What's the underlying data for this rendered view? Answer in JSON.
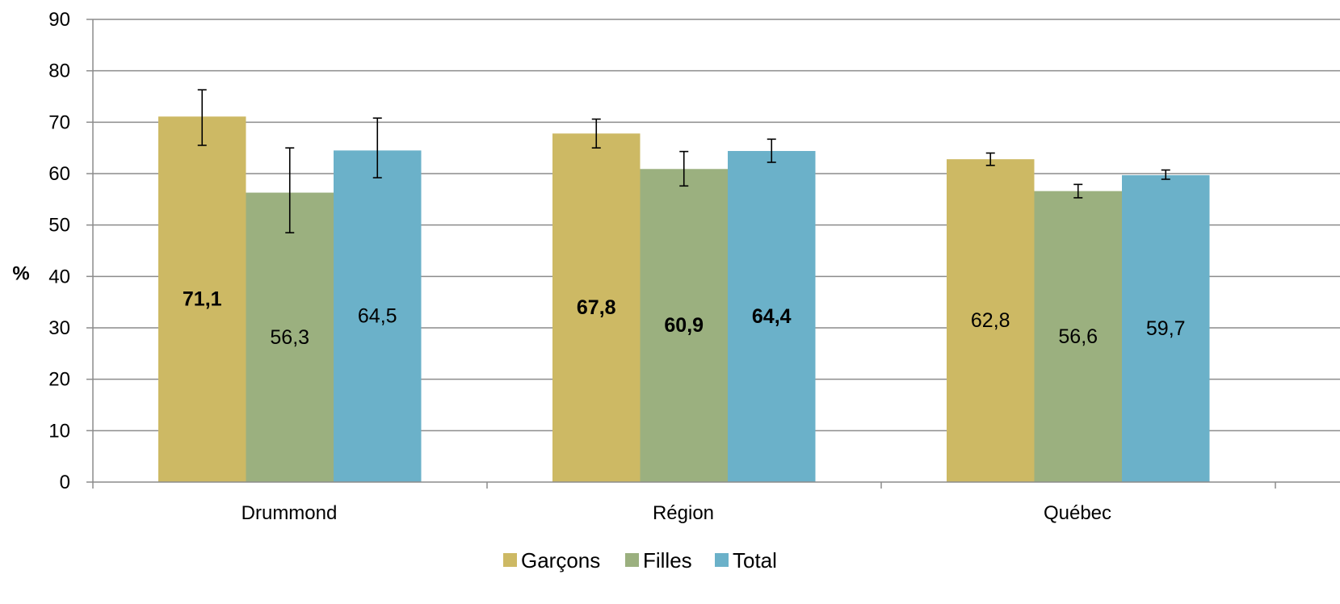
{
  "chart_data": {
    "type": "bar",
    "ylabel": "%",
    "ylim": [
      0,
      90
    ],
    "yticks": [
      0,
      10,
      20,
      30,
      40,
      50,
      60,
      70,
      80,
      90
    ],
    "grid": true,
    "legend_position": "bottom",
    "categories": [
      "Drummond",
      "Région",
      "Québec"
    ],
    "series": [
      {
        "name": "Garçons",
        "color": "#CDB964",
        "values": [
          71.1,
          67.8,
          62.8
        ],
        "labels": [
          "71,1",
          "67,8",
          "62,8"
        ],
        "bold": [
          true,
          true,
          false
        ],
        "error_low": [
          65.5,
          65.0,
          61.6
        ],
        "error_high": [
          76.3,
          70.6,
          64.0
        ]
      },
      {
        "name": "Filles",
        "color": "#9BB07F",
        "values": [
          56.3,
          60.9,
          56.6
        ],
        "labels": [
          "56,3",
          "60,9",
          "56,6"
        ],
        "bold": [
          false,
          true,
          false
        ],
        "error_low": [
          48.5,
          57.6,
          55.3
        ],
        "error_high": [
          65.0,
          64.3,
          57.9
        ]
      },
      {
        "name": "Total",
        "color": "#6BB1C9",
        "values": [
          64.5,
          64.4,
          59.7
        ],
        "labels": [
          "64,5",
          "64,4",
          "59,7"
        ],
        "bold": [
          false,
          true,
          false
        ],
        "error_low": [
          59.2,
          62.2,
          58.9
        ],
        "error_high": [
          70.8,
          66.7,
          60.7
        ]
      }
    ]
  }
}
